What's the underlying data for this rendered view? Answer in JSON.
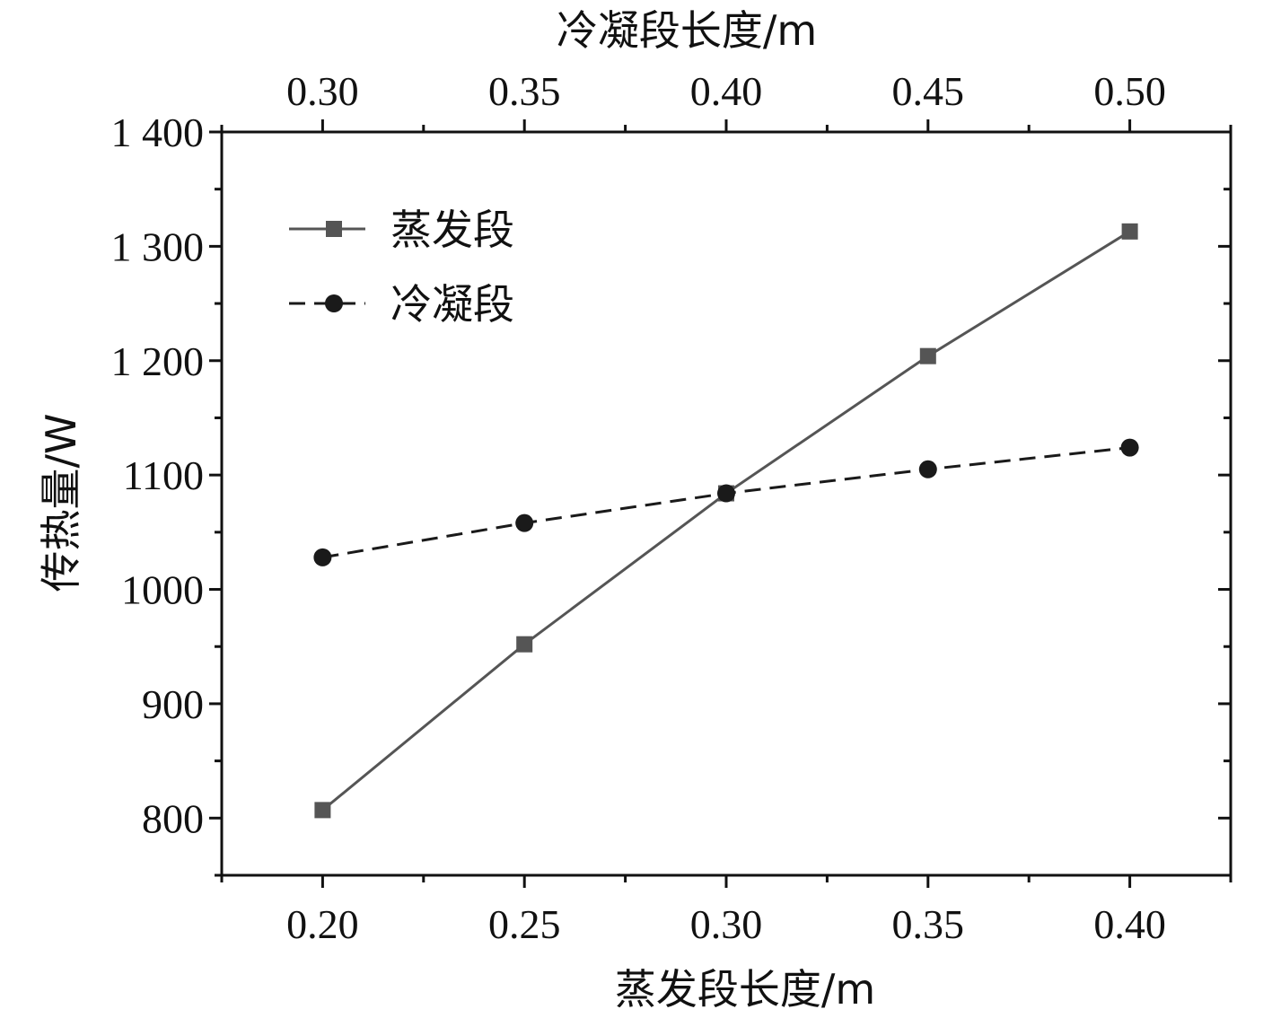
{
  "chart_data": {
    "type": "line",
    "xlabel": "蒸发段长度/m",
    "x2label": "冷凝段长度/m",
    "ylabel": "传热量/W",
    "x": [
      0.2,
      0.25,
      0.3,
      0.35,
      0.4
    ],
    "xlim": [
      0.175,
      0.425
    ],
    "x_ticks": [
      "0.20",
      "0.25",
      "0.30",
      "0.35",
      "0.40"
    ],
    "x2": [
      0.3,
      0.35,
      0.4,
      0.45,
      0.5
    ],
    "x2_ticks": [
      "0.30",
      "0.35",
      "0.40",
      "0.45",
      "0.50"
    ],
    "ylim": [
      750,
      1400
    ],
    "y_ticks": [
      {
        "value": 800,
        "label": "800"
      },
      {
        "value": 900,
        "label": "900"
      },
      {
        "value": 1000,
        "label": "1000"
      },
      {
        "value": 1100,
        "label": "1100"
      },
      {
        "value": 1200,
        "label": "1 200"
      },
      {
        "value": 1300,
        "label": "1 300"
      },
      {
        "value": 1400,
        "label": "1 400"
      }
    ],
    "series": [
      {
        "name": "蒸发段",
        "marker": "square",
        "line": "solid",
        "color": "#555555",
        "values": [
          807,
          952,
          1084,
          1204,
          1313
        ]
      },
      {
        "name": "冷凝段",
        "marker": "circle",
        "line": "dashed",
        "color": "#1a1a1a",
        "values": [
          1028,
          1058,
          1084,
          1105,
          1124
        ]
      }
    ],
    "legend_position": "top-left",
    "grid": false
  }
}
